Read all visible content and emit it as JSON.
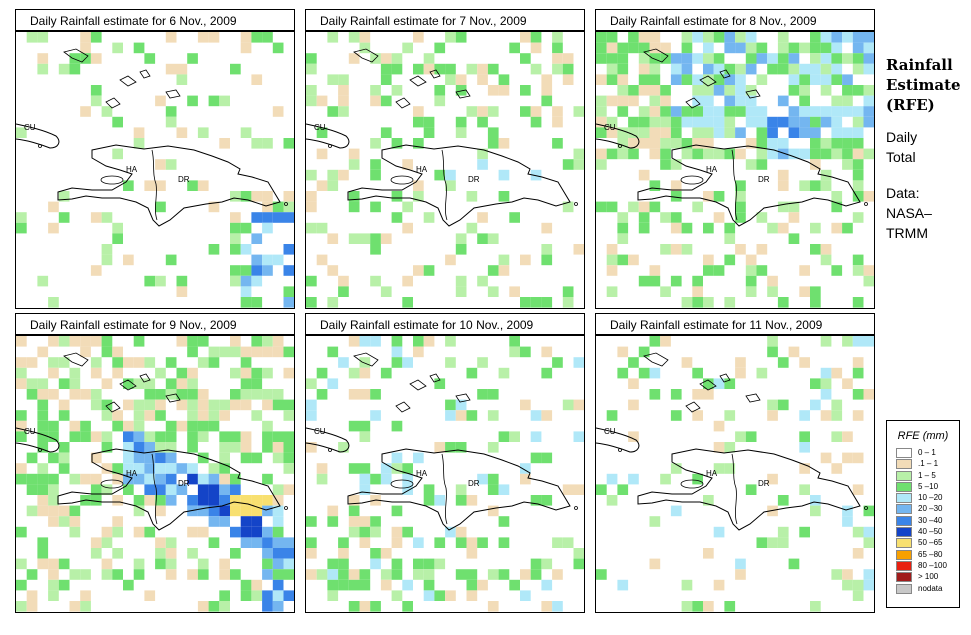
{
  "panels": [
    {
      "title": "Daily Rainfall estimate for  6 Nov., 2009",
      "pattern": "east"
    },
    {
      "title": "Daily Rainfall estimate for  7 Nov., 2009",
      "pattern": "light"
    },
    {
      "title": "Daily Rainfall estimate for  8 Nov., 2009",
      "pattern": "north"
    },
    {
      "title": "Daily Rainfall estimate for  9 Nov., 2009",
      "pattern": "band"
    },
    {
      "title": "Daily Rainfall estimate for  10 Nov., 2009",
      "pattern": "scatter"
    },
    {
      "title": "Daily Rainfall estimate for  11 Nov., 2009",
      "pattern": "sparse"
    }
  ],
  "map_labels": {
    "cu": "CU",
    "ha": "HA",
    "dr": "DR"
  },
  "side": {
    "title_lines": [
      "Rainfall",
      "Estimate",
      "(RFE)"
    ],
    "desc_lines": [
      "Daily",
      "Total"
    ],
    "data_lines": [
      "Data:",
      "NASA–",
      "TRMM"
    ]
  },
  "legend": {
    "title": "RFE (mm)",
    "items": [
      {
        "label": "0 – 1",
        "color": "#ffffff"
      },
      {
        "label": ".1 – 1",
        "color": "#f2dcb8"
      },
      {
        "label": "1 – 5",
        "color": "#b8f0a8"
      },
      {
        "label": "5 –10",
        "color": "#6fe06f"
      },
      {
        "label": "10 –20",
        "color": "#b0e8f8"
      },
      {
        "label": "20 –30",
        "color": "#74b6f0"
      },
      {
        "label": "30 –40",
        "color": "#3a84e8"
      },
      {
        "label": "40 –50",
        "color": "#1444c8"
      },
      {
        "label": "50 –65",
        "color": "#f8e070"
      },
      {
        "label": "65 –80",
        "color": "#f8a000"
      },
      {
        "label": "80 –100",
        "color": "#e82010"
      },
      {
        "label": "> 100",
        "color": "#a01c1c"
      },
      {
        "label": "nodata",
        "color": "#c8c8c8"
      }
    ]
  }
}
